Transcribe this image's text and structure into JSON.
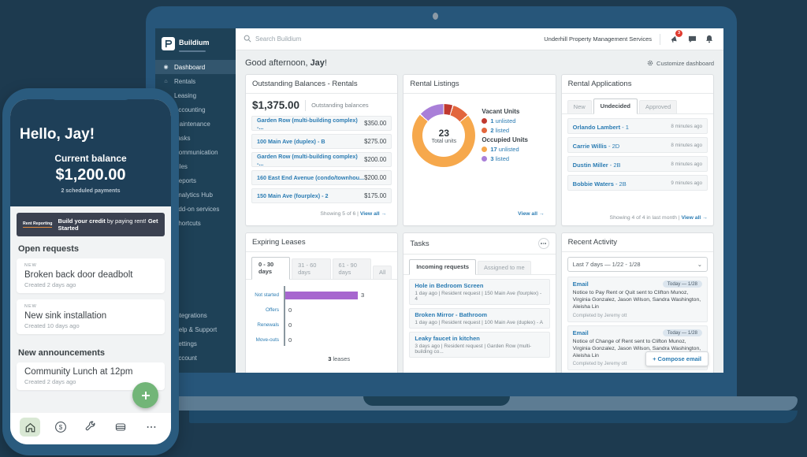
{
  "colors": {
    "link_blue": "#2b7cb3",
    "badge_red": "#e03a2f",
    "fab_green": "#72b578",
    "sidebar_bg": "#1e4157"
  },
  "ui": {
    "divider": "|",
    "chevron": "⌄"
  },
  "phone": {
    "greeting": "Hello, Jay!",
    "balance_label": "Current balance",
    "balance_value": "$1,200.00",
    "balance_sub": "2 scheduled payments",
    "banner": {
      "tag": "Rent Reporting",
      "lead": "Build your credit",
      "mid": " by paying rent! ",
      "cta": "Get Started"
    },
    "open_requests_title": "Open requests",
    "requests": [
      {
        "badge": "NEW",
        "title": "Broken back door deadbolt",
        "meta": "Created 2 days ago"
      },
      {
        "badge": "NEW",
        "title": "New sink installation",
        "meta": "Created 10 days ago"
      }
    ],
    "announcements_title": "New announcements",
    "announcements": [
      {
        "title": "Community Lunch at 12pm",
        "meta": "Created 2 days ago"
      }
    ]
  },
  "sidebar": {
    "logo": "Buildium",
    "items": [
      {
        "label": "Dashboard",
        "icon": "◉"
      },
      {
        "label": "Rentals",
        "icon": "⌂"
      },
      {
        "label": "Leasing",
        "icon": "⚑"
      },
      {
        "label": "Accounting",
        "icon": "$"
      },
      {
        "label": "Maintenance",
        "icon": "⚙"
      },
      {
        "label": "Tasks",
        "icon": "▤"
      },
      {
        "label": "Communication",
        "icon": "✉"
      },
      {
        "label": "Files",
        "icon": "❏"
      },
      {
        "label": "Reports",
        "icon": "▦"
      },
      {
        "label": "Analytics Hub",
        "icon": "◈"
      },
      {
        "label": "Add-on services",
        "icon": "✚"
      },
      {
        "label": "Shortcuts",
        "icon": "★"
      }
    ],
    "footer_items": [
      {
        "label": "Integrations",
        "icon": "❖"
      },
      {
        "label": "Help & Support",
        "icon": "?"
      },
      {
        "label": "Settings",
        "icon": "⚙"
      },
      {
        "label": "Account",
        "icon": "◍"
      }
    ]
  },
  "topbar": {
    "search_placeholder": "Search Buildium",
    "company": "Underhill Property Management Services",
    "notifications_count": "3"
  },
  "dashboard": {
    "greeting_prefix": "Good afternoon, ",
    "greeting_name": "Jay",
    "greeting_suffix": "!",
    "customize_label": "Customize dashboard",
    "outstanding": {
      "title": "Outstanding Balances - Rentals",
      "total": "$1,375.00",
      "total_label": "Outstanding balances",
      "rows": [
        {
          "name": "Garden Row (multi-building complex) -...",
          "amount": "$350.00"
        },
        {
          "name": "100 Main Ave (duplex) - B",
          "amount": "$275.00"
        },
        {
          "name": "Garden Row (multi-building complex) -...",
          "amount": "$200.00"
        },
        {
          "name": "160 East End Avenue (condo/townhou...",
          "amount": "$200.00"
        },
        {
          "name": "150 Main Ave (fourplex) - 2",
          "amount": "$175.00"
        }
      ],
      "footer": "Showing 5 of 6",
      "view_all": "View all →"
    },
    "rental_listings": {
      "title": "Rental Listings",
      "chart": {
        "type": "pie",
        "total_value": "23",
        "total_label": "Total units",
        "vacant_header": "Vacant Units",
        "occupied_header": "Occupied Units",
        "segments": [
          {
            "value": 1,
            "label": "unlisted",
            "color": "#c0392f",
            "group": "vacant"
          },
          {
            "value": 2,
            "label": "listed",
            "color": "#e2663d",
            "group": "vacant"
          },
          {
            "value": 17,
            "label": "unlisted",
            "color": "#f6a84c",
            "group": "occupied"
          },
          {
            "value": 3,
            "label": "listed",
            "color": "#a97fd8",
            "group": "occupied"
          }
        ]
      },
      "view_all": "View all →"
    },
    "applications": {
      "title": "Rental Applications",
      "tabs": [
        "New",
        "Undecided",
        "Approved"
      ],
      "rows": [
        {
          "name": "Orlando Lambert",
          "unit": " - 1",
          "time": "8 minutes ago"
        },
        {
          "name": "Carrie Willis",
          "unit": " - 2D",
          "time": "8 minutes ago"
        },
        {
          "name": "Dustin Miller",
          "unit": " - 2B",
          "time": "8 minutes ago"
        },
        {
          "name": "Bobbie Waters",
          "unit": " - 2B",
          "time": "9 minutes ago"
        }
      ],
      "footer": "Showing 4 of 4 in last month",
      "view_all": "View all →"
    },
    "expiring": {
      "title": "Expiring Leases",
      "tabs": [
        "0 - 30 days",
        "31 - 60 days",
        "61 - 90 days",
        "All"
      ],
      "chart": {
        "type": "bar",
        "bar_color": "#a766cf",
        "rows": [
          {
            "label": "Not started",
            "value": 3
          },
          {
            "label": "Offers",
            "value": 0
          },
          {
            "label": "Renewals",
            "value": 0
          },
          {
            "label": "Move-outs",
            "value": 0
          }
        ]
      },
      "total_bold": "3",
      "total_rest": " leases"
    },
    "tasks": {
      "title": "Tasks",
      "tabs": [
        "Incoming requests",
        "Assigned to me"
      ],
      "rows": [
        {
          "title": "Hole in Bedroom Screen",
          "meta": "1 day ago | Resident request | 150 Main Ave (fourplex) - 4"
        },
        {
          "title": "Broken Mirror - Bathroom",
          "meta": "1 day ago | Resident request | 100 Main Ave (duplex) - A"
        },
        {
          "title": "Leaky faucet in kitchen",
          "meta": "3 days ago | Resident request | Garden Row (multi-building co..."
        }
      ]
    },
    "activity": {
      "title": "Recent Activity",
      "range": "Last 7 days — 1/22 - 1/28",
      "rows": [
        {
          "type": "Email",
          "badge": "Today — 1/28",
          "body": "Notice to Pay Rent or Quit sent to Clifton Munoz, Virginia Gonzalez, Jason Wilson, Sandra Washington, Aleisha Lin",
          "by": "Completed by Jeremy ott"
        },
        {
          "type": "Email",
          "badge": "Today — 1/28",
          "body": "Notice of Change of Rent sent to Clifton Munoz, Virginia Gonzalez, Jason Wilson, Sandra Washington, Aleisha Lin",
          "by": "Completed by Jeremy ott"
        }
      ],
      "compose_label": "+ Compose email"
    }
  }
}
